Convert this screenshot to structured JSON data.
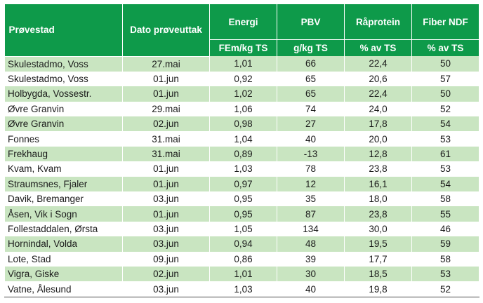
{
  "headers": {
    "provestad": "Prøvestad",
    "dato": "Dato prøveuttak",
    "energi": "Energi",
    "pbv": "PBV",
    "raprotein": "Råprotein",
    "fiber": "Fiber NDF",
    "energi_unit": "FEm/kg TS",
    "pbv_unit": "g/kg TS",
    "raprotein_unit": "% av TS",
    "fiber_unit": "% av TS"
  },
  "rows": [
    [
      "Skulestadmo, Voss",
      "27.mai",
      "1,01",
      "66",
      "22,4",
      "50"
    ],
    [
      "Skulestadmo, Voss",
      "01.jun",
      "0,92",
      "65",
      "20,6",
      "57"
    ],
    [
      "Holbygda, Vossestr.",
      "01.jun",
      "1,02",
      "65",
      "22,4",
      "50"
    ],
    [
      "Øvre Granvin",
      "29.mai",
      "1,06",
      "74",
      "24,0",
      "52"
    ],
    [
      "Øvre Granvin",
      "02.jun",
      "0,98",
      "27",
      "17,8",
      "54"
    ],
    [
      "Fonnes",
      "31.mai",
      "1,04",
      "40",
      "20,0",
      "53"
    ],
    [
      "Frekhaug",
      "31.mai",
      "0,89",
      "-13",
      "12,8",
      "61"
    ],
    [
      "Kvam, Kvam",
      "01.jun",
      "1,03",
      "78",
      "23,8",
      "53"
    ],
    [
      "Straumsnes, Fjaler",
      "01.jun",
      "0,97",
      "12",
      "16,1",
      "54"
    ],
    [
      "Davik, Bremanger",
      "03.jun",
      "0,95",
      "35",
      "18,0",
      "58"
    ],
    [
      "Åsen, Vik i Sogn",
      "01.jun",
      "0,95",
      "87",
      "23,8",
      "55"
    ],
    [
      "Follestaddalen, Ørsta",
      "03.jun",
      "1,05",
      "134",
      "30,0",
      "46"
    ],
    [
      "Hornindal, Volda",
      "03.jun",
      "0,94",
      "48",
      "19,5",
      "59"
    ],
    [
      "Lote, Stad",
      "09.jun",
      "0,86",
      "39",
      "17,7",
      "58"
    ],
    [
      "Vigra, Giske",
      "02.jun",
      "1,01",
      "30",
      "18,5",
      "53"
    ],
    [
      "Vatne, Ålesund",
      "03.jun",
      "1,03",
      "40",
      "19,8",
      "52"
    ]
  ]
}
